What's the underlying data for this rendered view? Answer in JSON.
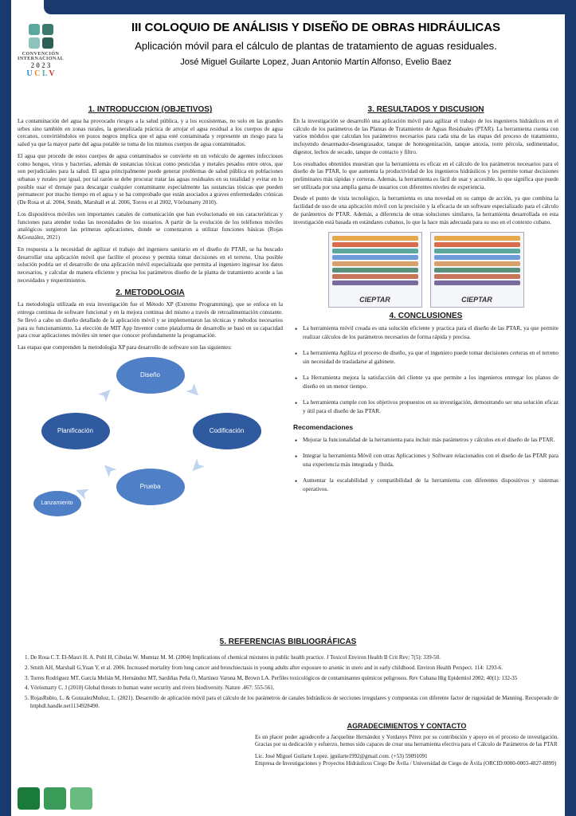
{
  "colors": {
    "primary_blue": "#1a3a6e",
    "xp_blue": "#4f7fc6",
    "xp_dark": "#2f5aa0",
    "arrow": "#bfd4ed",
    "bg": "#ffffff",
    "text": "#1a1a1a",
    "green1": "#1a7a3a",
    "green2": "#3a9a58",
    "green3": "#6abb80",
    "teal1": "#5aa89e",
    "teal2": "#3b7a6f",
    "teal3": "#8ac4bd",
    "teal4": "#2c5f55"
  },
  "logo": {
    "line1": "CONVENCIÓN",
    "line2": "INTERNACIONAL",
    "year": "2 0 2 3",
    "uclv": "U C L V"
  },
  "header": {
    "main": "III COLOQUIO DE ANÁLISIS Y DISEÑO DE OBRAS HIDRÁULICAS",
    "sub": "Aplicación móvil para el cálculo de plantas de tratamiento de aguas residuales.",
    "authors": "José Miguel Guilarte Lopez, Juan Antonio Martín Alfonso, Evelio Baez"
  },
  "sections": {
    "intro_title": "1. INTRODUCCION (OBJETIVOS)",
    "intro_p1": "La contaminación del agua ha provocado riesgos a la salud pública, y a los ecosistemas, no solo en las grandes urbes sino también en zonas rurales, la generalizada práctica de arrojar el agua residual a los cuerpos de agua cercanos, convirtiéndolos en pozos negros implica que el agua esté contaminada y represente un riesgo para la salud ya que la mayor parte del agua potable se toma de los mismos cuerpos de agua contaminados.",
    "intro_p2": "El agua que procede de estos cuerpos de agua contaminados se convierte en un vehículo de agentes infecciosos como hongos, virus y bacterias, además de sustancias tóxicas como pesticidas y metales pesados entre otros, que son perjudiciales para la salud. El agua principalmente puede generar problemas de salud pública en poblaciones urbanas y rurales por igual, por tal razón se debe procurar tratar las aguas residuales en su totalidad y evitar en lo posible usar el drenaje para descargar cualquier contaminante especialmente las sustancias tóxicas que pueden permanecer por mucho tiempo en el agua y se ha comprobado que están asociados a graves enfermedades crónicas (De Rosa et al. 2004, Smith, Marshall et al. 2006, Torres et al 2002, Vörösmarty 2010).",
    "intro_p3": "Los dispositivos móviles son importantes canales de comunicación que han evolucionado en sus características y funciones para atender todas las necesidades de los usuarios. A partir de la evolución de los teléfonos móviles analógicos surgieron las primeras aplicaciones, donde se comenzaron a utilizar funciones básicas (Rojas &González, 2021)",
    "intro_p4": "En respuesta a la necesidad de agilizar el trabajo del ingeniero sanitario en el diseño de PTAR, se ha buscado desarrollar una aplicación móvil que facilite el proceso y permita tomar decisiones en el terreno. Una posible solución podría ser el desarrollo de una aplicación móvil especializada que permita al ingeniero ingresar los datos necesarios, y calcular de manera eficiente y precisa los parámetros diseño de la planta de tratamiento acorde a las necesidades y requerimientos.",
    "metod_title": "2. METODOLOGIA",
    "metod_p1": "La metodología utilizada en esta investigación fue el Método XP (Extreme Programming), que se enfoca en la entrega continua de software funcional y en la mejora continua del mismo a través de retroalimentación constante. Se llevó a cabo un diseño detallado de la aplicación móvil y se implementaron las técnicas y métodos necesarios para su funcionamiento. La elección de MIT App Inventor como plataforma de desarrollo se basó en su capacidad para crear aplicaciones móviles sin tener que conocer profundamente la programación.",
    "metod_p2": "Las etapas que comprenden la metodología XP para desarrollo de software son las siguientes:",
    "result_title": "3. RESULTADOS Y DISCUSION",
    "result_p1": "En la investigación se desarrolló una aplicación móvil para agilizar el trabajo de los ingenieros hidráulicos en el cálculo de los parámetros de las Plantas de Tratamiento de Aguas Residuales (PTAR). La herramienta cuenta con varios módulos que calculan los parámetros necesarios para cada una de las etapas del proceso de tratamiento, incluyendo desarenador-desengrasador, tanque de homogenización, tanque anoxia, torre pércola, sedimentador, digestor, lechos de secado, tanque de contacto y filtro.",
    "result_p2": "Los resultados obtenidos muestran que la herramienta es eficaz en el cálculo de los parámetros necesarios para el diseño de las PTAR, lo que aumenta la productividad de los ingenieros hidráulicos y les permite tomar decisiones preliminares más rápidas y certeras. Además, la herramienta es fácil de usar y accesible, lo que significa que puede ser utilizada por una amplia gama de usuarios con diferentes niveles de experiencia.",
    "result_p3": "Desde el punto de vista tecnológico, la herramienta es una novedad en su campo de acción, ya que combina la facilidad de uso de una aplicación móvil con la precisión y la eficacia de un software especializado para el cálculo de parámetros de PTAR. Además, a diferencia de otras soluciones similares, la herramienta desarrollada en esta investigación está basada en estándares cubanos, lo que la hace más adecuada para su uso en el contexto cubano.",
    "conc_title": "4. CONCLUSIONES",
    "recs_title": "Recomendaciones",
    "refs_title": "5. REFERENCIAS BIBLIOGRÁFICAS",
    "ack_title": "AGRADECIMIENTOS Y CONTACTO",
    "ack_p1": "Es un placer poder agradecerle a Jacqueline Hernández y Yordanys Pérez por su contribución y apoyo en el proceso de investigación. Gracias por su dedicación y esfuerzo, hemos sido capaces de crear una herramienta efectiva para el Cálculo de Parámetros de las PTAR",
    "contact_line1": "Lic. José Miguel Guilarte Lopez.    jguilarte1992@gmail.com.    (+53) 59091091",
    "contact_line2": "Empresa de Investigaciones y Proyectos Hidráulicos Ciego De Ávila / Universidad de Ciego de Ávila (ORCID:0000-0003-4827-8899)"
  },
  "xp_nodes": {
    "design": "Diseño",
    "planning": "Planificación",
    "coding": "Codificación",
    "test": "Prueba",
    "launch": "Lanzamiento"
  },
  "app_label": "CIEPTAR",
  "conclusions": [
    "La herramienta móvil creada es una solución eficiente y practica para el diseño de las PTAR, ya que permite realizar cálculos de los parámetros necesarios de forma rápida y precisa.",
    "La herramienta Agiliza el proceso de diseño, ya que el ingeniero puede tomar decisiones certeras en el terreno sin necesidad de trasladarse al gabinete.",
    "La Herramienta mejora la satisfacción del cliente ya que permite a los ingenieros entregar los planos de diseño en un menor tiempo.",
    "La herramienta cumple con los objetivos propuestos en su investigación, demostrando ser una solución eficaz y útil para el diseño de las PTAR."
  ],
  "recommendations": [
    "Mejorar la funcionalidad de la herramienta para incluir más parámetros y cálculos en el diseño de las PTAR.",
    "Integrar la herramienta Móvil con otras Aplicaciones y Software relacionados con el diseño de las PTAR para una experiencia más integrada y fluida.",
    "Aumentar la escalabilidad y compatibilidad de la herramienta con diferentes dispositivos y sistemas operativos."
  ],
  "references": [
    "De Rosa C.T. El-Masri H. A. Pohl H, Cibulas W. Mumtaz M. M. (2004) Implications of chemical mixtures in public health practice. J Toxicol Environ Health B Crit Rev; 7(5): 339-50.",
    "Smith AH, Marshall G,Yuan Y, et al. 2006. Increased mortality from lung cancer and bronchiectasis in young adults after exposure to arsenic in utero and in early childhood. Environ Health Perspect. 114: 1293-6.",
    "Torres Rodríguez MT, García Melián M, Hernández MT, Sardiñas Peña O, Martinez Varona M, Brown LA. Perfiles toxicológicos de contaminantes químicos peligrosos. Rev Cubana Hig Epidemiol 2002; 40(1): 132-35",
    "Vörösmarty C. J (2010) Global threats to human water security and rivers biodiversity. Nature .467: 555-561.",
    "RojasRubio, L. & GonzalezMuñoz, L. (2021). Desarrollo de aplicación móvil para el cálculo de los parámetros de canales hidráulicos de secciones irregulares y compuestas con diferente factor de rugosidad de Manning. Recuperado de httphdl.handle.net1134928490."
  ],
  "screen_row_colors": [
    "#e6a84a",
    "#d86b4a",
    "#5aa89e",
    "#6b9bd8",
    "#d8a06b",
    "#5a8f7a",
    "#c6755a",
    "#7a6b9e"
  ]
}
